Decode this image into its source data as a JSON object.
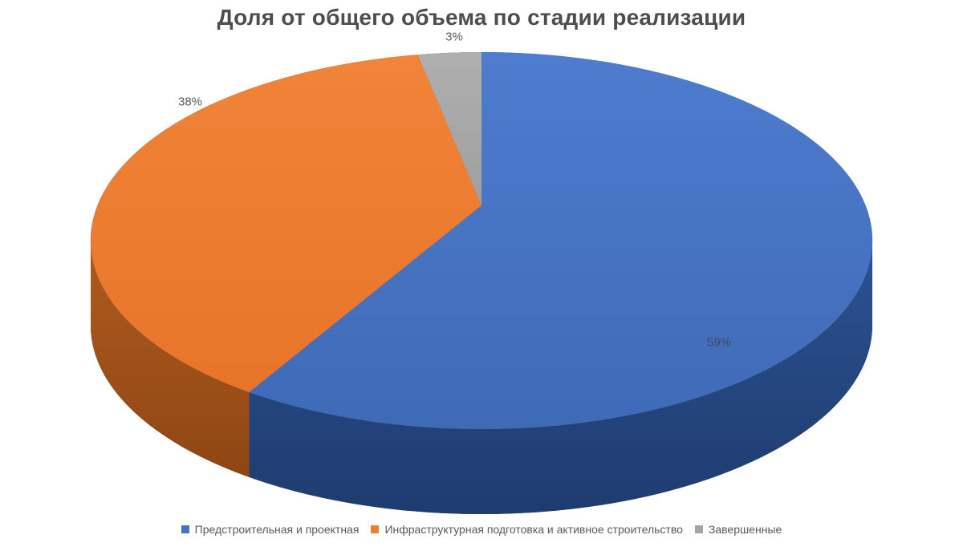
{
  "background_color": "#FFFFFF",
  "chart_data": {
    "type": "pie",
    "is_3d": true,
    "title": "Доля от общего объема по стадии реализации",
    "title_color": "#4D4D4D",
    "legend_position": "bottom",
    "start_angle_deg": 0,
    "direction": "clockwise",
    "categories": [
      "Предстроительная и проектная",
      "Инфраструктурная подготовка и активное строительство",
      "Завершенные"
    ],
    "values": [
      59,
      38,
      3
    ],
    "slices": [
      {
        "label": "Предстроительная и проектная",
        "value_pct": 59,
        "data_label": "59%",
        "color": "#4472C4",
        "top_gradient": [
          "#4E7CCF",
          "#3F6AB6"
        ],
        "side_gradient": [
          "#2C5292",
          "#1E3C6E"
        ]
      },
      {
        "label": "Инфраструктурная подготовка и активное строительство",
        "value_pct": 38,
        "data_label": "38%",
        "color": "#ED7D31",
        "top_gradient": [
          "#F08438",
          "#E87429"
        ],
        "side_gradient": [
          "#AF5B1E",
          "#8F4614"
        ]
      },
      {
        "label": "Завершенные",
        "value_pct": 3,
        "data_label": "3%",
        "color": "#A5A5A5",
        "top_gradient": [
          "#AFAFAF",
          "#9F9F9F"
        ],
        "side_gradient": [
          "#8A8A8A",
          "#7A7A7A"
        ]
      }
    ]
  }
}
